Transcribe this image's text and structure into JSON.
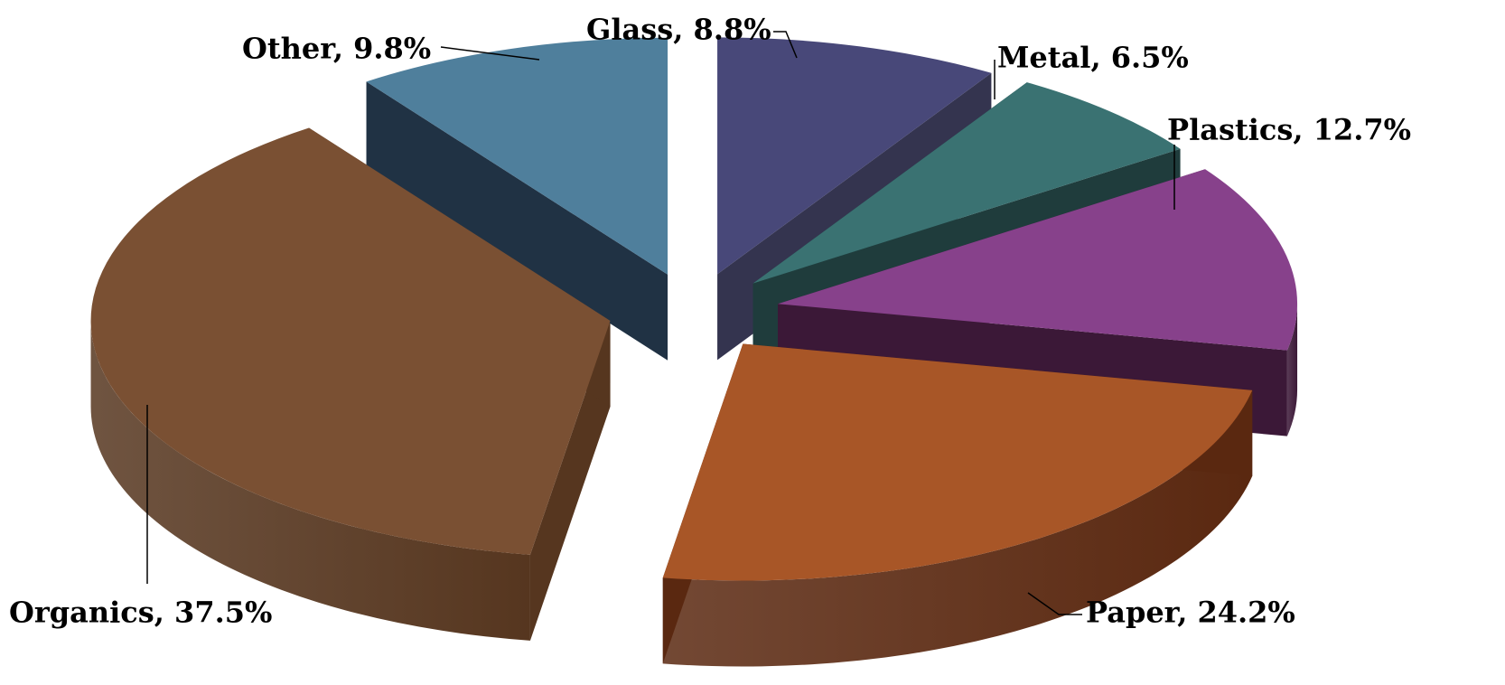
{
  "chart_data": {
    "type": "pie",
    "style": "3d-exploded",
    "title": "",
    "legend": "none",
    "slices": [
      {
        "label": "Glass",
        "value": 8.8,
        "display": "Glass, 8.8%",
        "top": "#484879",
        "side": "#34344f"
      },
      {
        "label": "Metal",
        "value": 6.5,
        "display": "Metal, 6.5%",
        "top": "#3a7272",
        "side": "#1f3c3c"
      },
      {
        "label": "Plastics",
        "value": 12.7,
        "display": "Plastics, 12.7%",
        "top": "#87418b",
        "side": "#3b1837"
      },
      {
        "label": "Paper",
        "value": 24.2,
        "display": "Paper, 24.2%",
        "top": "#a85627",
        "side": "#5a2810"
      },
      {
        "label": "Organics",
        "value": 37.5,
        "display": "Organics, 37.5%",
        "top": "#7a5033",
        "side": "#56361f"
      },
      {
        "label": "Other",
        "value": 9.8,
        "display": "Other, 9.8%",
        "top": "#4f7f9c",
        "side": "#203244"
      }
    ]
  }
}
